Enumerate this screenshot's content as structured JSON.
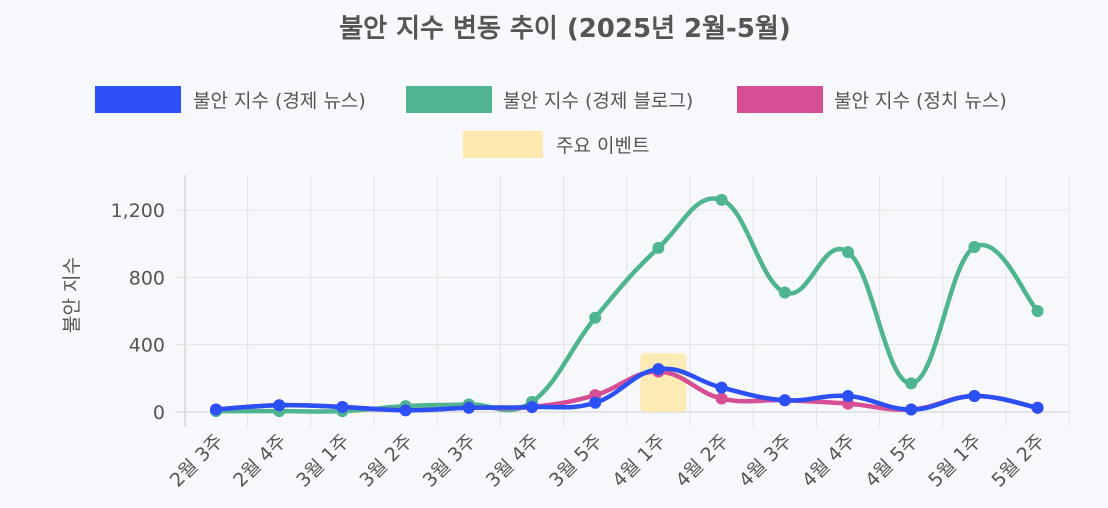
{
  "chart_data": {
    "type": "line",
    "title": "불안 지수 변동 추이 (2025년 2월-5월)",
    "ylabel": "불안 지수",
    "xlabel": "",
    "categories": [
      "2월 3주",
      "2월 4주",
      "3월 1주",
      "3월 2주",
      "3월 3주",
      "3월 4주",
      "3월 5주",
      "4월 1주",
      "4월 2주",
      "4월 3주",
      "4월 4주",
      "4월 5주",
      "5월 1주",
      "5월 2주"
    ],
    "ylim": [
      0,
      1400
    ],
    "yticks": [
      0,
      400,
      800,
      1200
    ],
    "ytick_labels": [
      "0",
      "400",
      "800",
      "1,200"
    ],
    "grid": true,
    "legend_position": "top",
    "series": [
      {
        "name": "불안 지수 (경제 뉴스)",
        "color": "#2b50f5",
        "values": [
          15,
          40,
          30,
          10,
          25,
          30,
          55,
          255,
          145,
          70,
          95,
          15,
          95,
          25
        ]
      },
      {
        "name": "불안 지수 (경제 블로그)",
        "color": "#4fb591",
        "values": [
          5,
          5,
          5,
          35,
          45,
          60,
          560,
          975,
          1260,
          710,
          950,
          170,
          980,
          600
        ]
      },
      {
        "name": "불안 지수 (정치 뉴스)",
        "color": "#d64e93",
        "values": [
          15,
          40,
          30,
          10,
          25,
          30,
          100,
          240,
          80,
          70,
          50,
          15,
          95,
          25
        ]
      }
    ],
    "annotation": {
      "name": "주요 이벤트",
      "color": "#fde9ad",
      "x_category": "4월 1주",
      "y_range": [
        0,
        350
      ]
    }
  }
}
